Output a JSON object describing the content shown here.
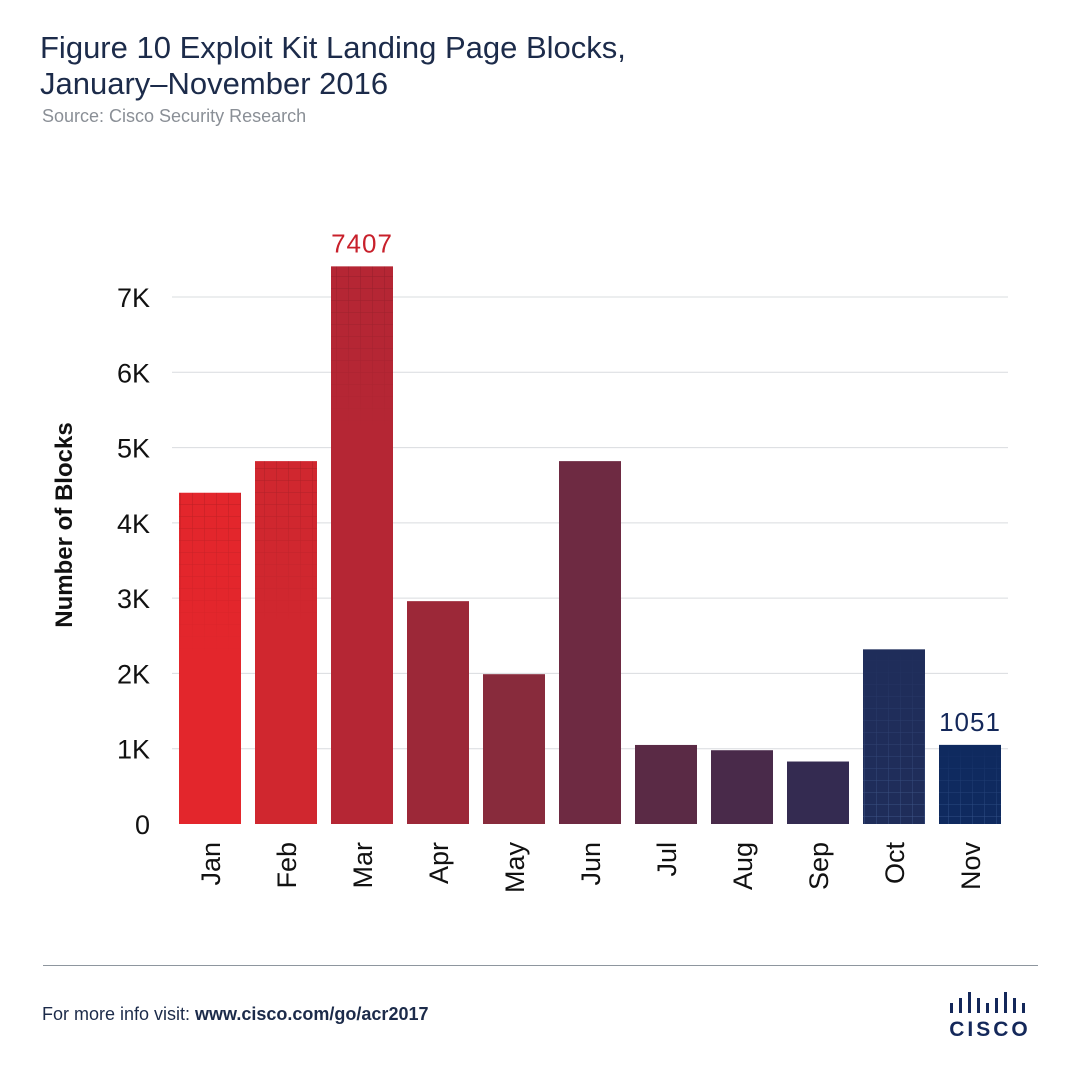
{
  "header": {
    "title_line1": "Figure 10  Exploit Kit Landing Page Blocks,",
    "title_line2": "January–November 2016",
    "source": "Source: Cisco Security Research"
  },
  "footer": {
    "prefix": "For more info visit: ",
    "link": "www.cisco.com/go/acr2017",
    "logo_text": "CISCO"
  },
  "chart_data": {
    "type": "bar",
    "title": "Exploit Kit Landing Page Blocks, January–November 2016",
    "ylabel": "Number of Blocks",
    "xlabel": "",
    "categories": [
      "Jan",
      "Feb",
      "Mar",
      "Apr",
      "May",
      "Jun",
      "Jul",
      "Aug",
      "Sep",
      "Oct",
      "Nov"
    ],
    "values": [
      4400,
      4820,
      7407,
      2960,
      1990,
      4820,
      1050,
      980,
      830,
      2320,
      1051
    ],
    "ylim": [
      0,
      7000
    ],
    "yticks": [
      0,
      1000,
      2000,
      3000,
      4000,
      5000,
      6000,
      7000
    ],
    "ytick_labels": [
      "0",
      "1K",
      "2K",
      "3K",
      "4K",
      "5K",
      "6K",
      "7K"
    ],
    "grid": true,
    "data_labels": [
      {
        "category": "Mar",
        "text": "7407"
      },
      {
        "category": "Nov",
        "text": "1051"
      }
    ],
    "bar_colors": [
      "#e3262c",
      "#d0272f",
      "#b52634",
      "#9c2838",
      "#882b3c",
      "#6e2a42",
      "#5a2a45",
      "#492a4a",
      "#342b51",
      "#1f2d5a",
      "#0f2a5f"
    ],
    "label_colors": {
      "Mar": "#c8202b",
      "Nov": "#14285a"
    },
    "pattern_bars": [
      "Jan",
      "Feb",
      "Mar",
      "Oct",
      "Nov"
    ]
  }
}
